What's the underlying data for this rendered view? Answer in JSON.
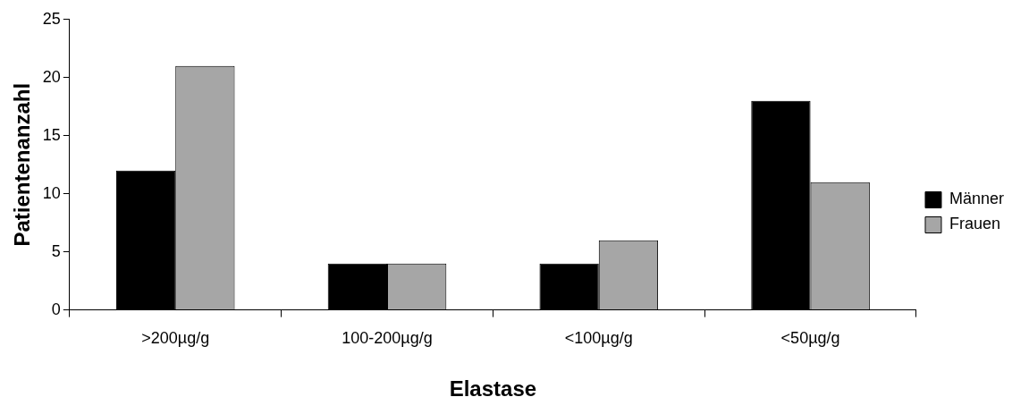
{
  "chart_data": {
    "type": "bar",
    "xlabel": "Elastase",
    "ylabel": "Patientenanzahl",
    "categories": [
      ">200µg/g",
      "100-200µg/g",
      "<100µg/g",
      "<50µg/g"
    ],
    "series": [
      {
        "name": "Männer",
        "color": "#000000",
        "values": [
          12,
          4,
          4,
          18
        ]
      },
      {
        "name": "Frauen",
        "color": "#a6a6a6",
        "values": [
          21,
          4,
          6,
          11
        ]
      }
    ],
    "ylim": [
      0,
      25
    ],
    "yticks": [
      0,
      5,
      10,
      15,
      20,
      25
    ],
    "legend": "right"
  }
}
